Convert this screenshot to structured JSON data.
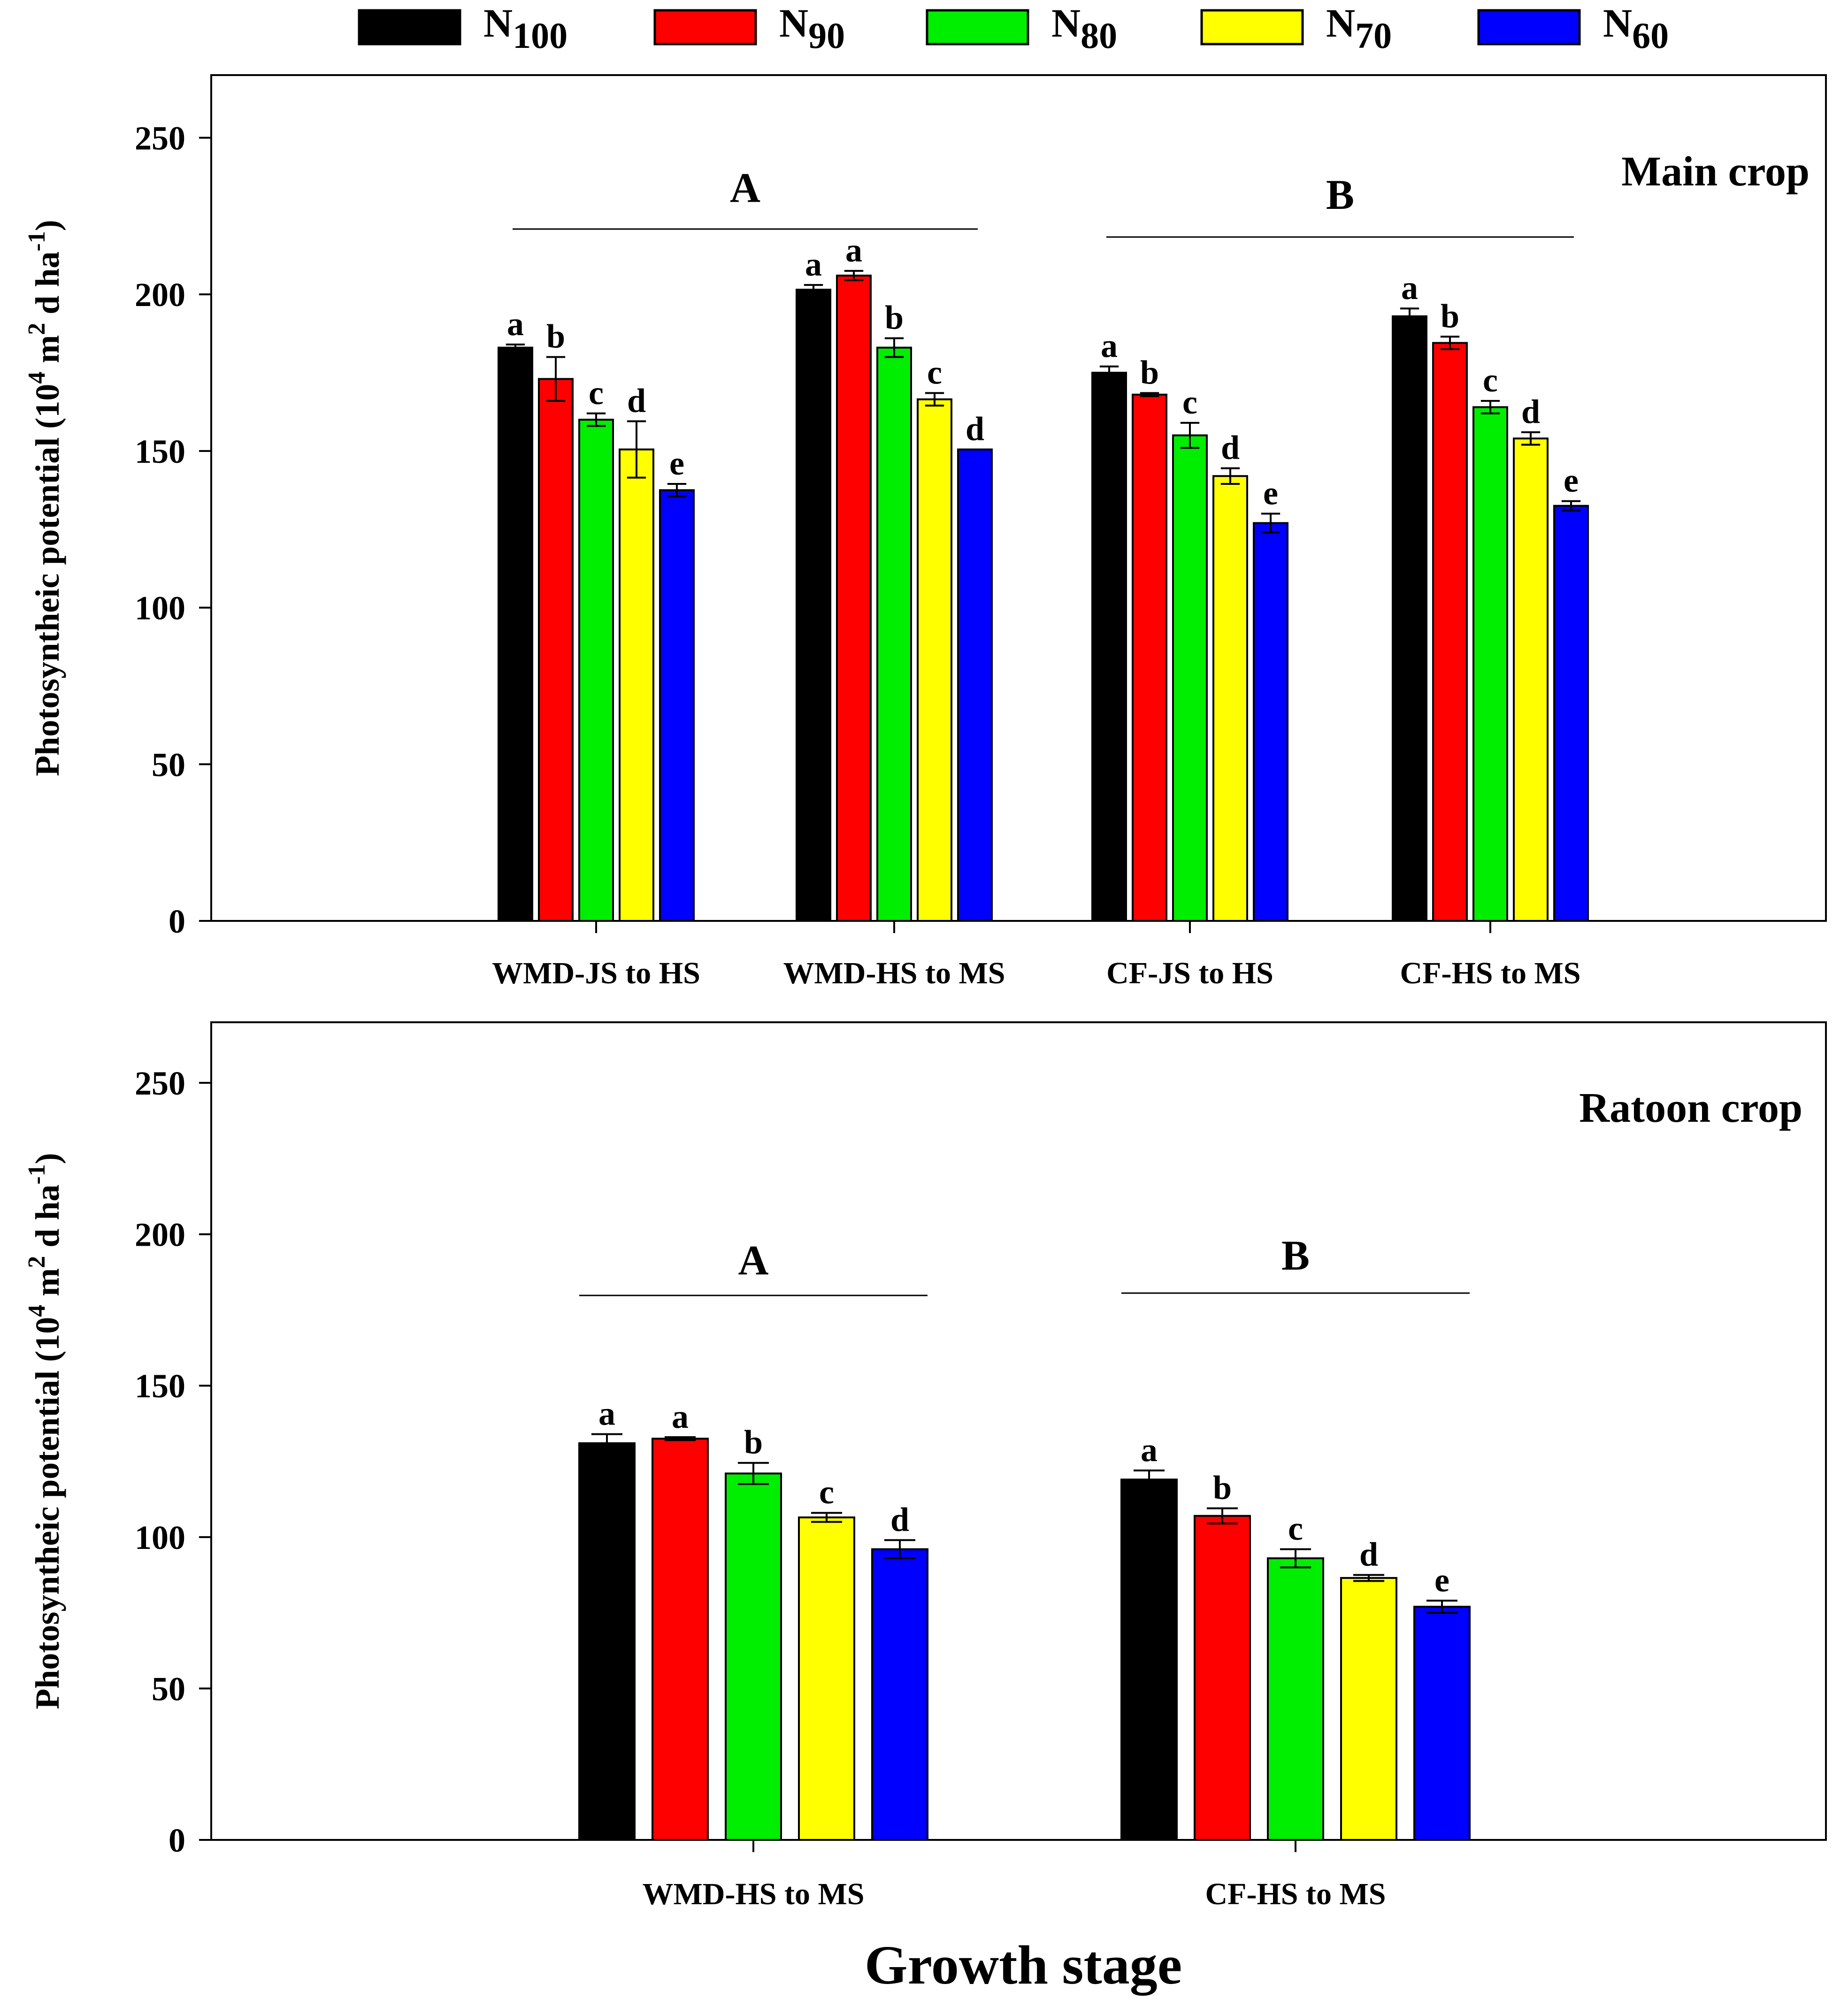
{
  "colors": [
    "#000000",
    "#ff0000",
    "#00ee00",
    "#ffff00",
    "#0000ff"
  ],
  "legend": [
    {
      "base": "N",
      "sub": "100"
    },
    {
      "base": "N",
      "sub": "90"
    },
    {
      "base": "N",
      "sub": "80"
    },
    {
      "base": "N",
      "sub": "70"
    },
    {
      "base": "N",
      "sub": "60"
    }
  ],
  "xlabel": "Growth stage",
  "chart_data": [
    {
      "type": "bar",
      "title": "Main crop",
      "ylabel": {
        "main": "Photosyntheic potential (10",
        "sup1": "4",
        "mid": " m",
        "sup2": "2",
        "mid2": " d ha",
        "sup3": "-1",
        "end": ")"
      },
      "ylim": [
        0,
        270
      ],
      "yticks": [
        0,
        50,
        100,
        150,
        200,
        250
      ],
      "categories": [
        "WMD-JS to HS",
        "WMD-HS to MS",
        "CF-JS to HS",
        "CF-HS to MS"
      ],
      "series": [
        {
          "name": "N100",
          "values": [
            183,
            201.5,
            175,
            193
          ],
          "errors": [
            1,
            1.5,
            2,
            2.5
          ],
          "letters": [
            "a",
            "a",
            "a",
            "a"
          ]
        },
        {
          "name": "N90",
          "values": [
            173,
            206,
            168,
            184.5
          ],
          "errors": [
            7,
            1.5,
            0.5,
            2
          ],
          "letters": [
            "b",
            "a",
            "b",
            "b"
          ]
        },
        {
          "name": "N80",
          "values": [
            160,
            183,
            155,
            164
          ],
          "errors": [
            2,
            3,
            4,
            2
          ],
          "letters": [
            "c",
            "b",
            "c",
            "c"
          ]
        },
        {
          "name": "N70",
          "values": [
            150.5,
            166.5,
            142,
            154
          ],
          "errors": [
            9,
            2,
            2.5,
            2
          ],
          "letters": [
            "d",
            "c",
            "d",
            "d"
          ]
        },
        {
          "name": "N60",
          "values": [
            137.5,
            150.5,
            127,
            132.5
          ],
          "errors": [
            2,
            0,
            3,
            1.5
          ],
          "letters": [
            "e",
            "d",
            "e",
            "e"
          ]
        }
      ],
      "groups": [
        {
          "label": "A",
          "from": 0,
          "to": 1
        },
        {
          "label": "B",
          "from": 2,
          "to": 3
        }
      ]
    },
    {
      "type": "bar",
      "title": "Ratoon crop",
      "ylabel": {
        "main": "Photosyntheic potential (10",
        "sup1": "4",
        "mid": " m",
        "sup2": "2",
        "mid2": " d ha",
        "sup3": "-1",
        "end": ")"
      },
      "ylim": [
        0,
        270
      ],
      "yticks": [
        0,
        50,
        100,
        150,
        200,
        250
      ],
      "categories": [
        "WMD-HS to MS",
        "CF-HS to MS"
      ],
      "series": [
        {
          "name": "N100",
          "values": [
            131,
            119
          ],
          "errors": [
            3,
            3
          ],
          "letters": [
            "a",
            "a"
          ]
        },
        {
          "name": "N90",
          "values": [
            132.5,
            107
          ],
          "errors": [
            0.5,
            2.5
          ],
          "letters": [
            "a",
            "b"
          ]
        },
        {
          "name": "N80",
          "values": [
            121,
            93
          ],
          "errors": [
            3.5,
            3
          ],
          "letters": [
            "b",
            "c"
          ]
        },
        {
          "name": "N70",
          "values": [
            106.5,
            86.5
          ],
          "errors": [
            1.5,
            1
          ],
          "letters": [
            "c",
            "d"
          ]
        },
        {
          "name": "N60",
          "values": [
            96,
            77
          ],
          "errors": [
            3,
            2
          ],
          "letters": [
            "d",
            "e"
          ]
        }
      ],
      "groups": [
        {
          "label": "A",
          "from": 0,
          "to": 0
        },
        {
          "label": "B",
          "from": 1,
          "to": 1
        }
      ]
    }
  ]
}
